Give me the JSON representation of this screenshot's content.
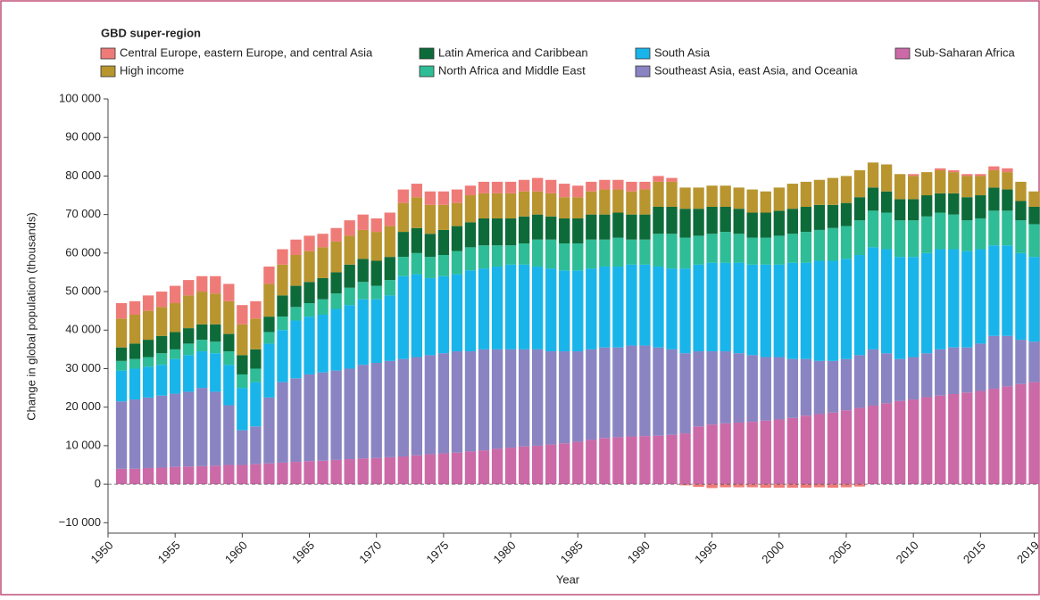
{
  "chart_data": {
    "type": "stacked_bar",
    "legend_title": "GBD super-region",
    "y_label": "Change in global population (thousands)",
    "x_label": "Year",
    "x": [
      1951,
      1952,
      1953,
      1954,
      1955,
      1956,
      1957,
      1958,
      1959,
      1960,
      1961,
      1962,
      1963,
      1964,
      1965,
      1966,
      1967,
      1968,
      1969,
      1970,
      1971,
      1972,
      1973,
      1974,
      1975,
      1976,
      1977,
      1978,
      1979,
      1980,
      1981,
      1982,
      1983,
      1984,
      1985,
      1986,
      1987,
      1988,
      1989,
      1990,
      1991,
      1992,
      1993,
      1994,
      1995,
      1996,
      1997,
      1998,
      1999,
      2000,
      2001,
      2002,
      2003,
      2004,
      2005,
      2006,
      2007,
      2008,
      2009,
      2010,
      2011,
      2012,
      2013,
      2014,
      2015,
      2016,
      2017,
      2018,
      2019
    ],
    "xlim": [
      1950,
      2019.3
    ],
    "xticks": [
      1950,
      1955,
      1960,
      1965,
      1970,
      1975,
      1980,
      1985,
      1990,
      1995,
      2000,
      2005,
      2010,
      2015,
      2019
    ],
    "ylim": [
      -12700,
      100000
    ],
    "yticks": [
      {
        "value": -10000,
        "label": "−10 000"
      },
      0,
      {
        "value": 10000,
        "label": "10 000"
      },
      {
        "value": 20000,
        "label": "20 000"
      },
      {
        "value": 30000,
        "label": "30 000"
      },
      {
        "value": 40000,
        "label": "40 000"
      },
      {
        "value": 50000,
        "label": "50 000"
      },
      {
        "value": 60000,
        "label": "60 000"
      },
      {
        "value": 70000,
        "label": "70 000"
      },
      {
        "value": 80000,
        "label": "80 000"
      },
      {
        "value": 90000,
        "label": "90 000"
      },
      {
        "value": 100000,
        "label": "100 000"
      }
    ],
    "series": [
      {
        "name": "Sub-Saharan Africa",
        "color": "#cc6aa8",
        "values": [
          4000,
          4000,
          4200,
          4300,
          4500,
          4600,
          4700,
          4800,
          5000,
          5000,
          5200,
          5400,
          5600,
          5800,
          6000,
          6100,
          6300,
          6500,
          6700,
          6800,
          7000,
          7200,
          7500,
          7800,
          8000,
          8200,
          8500,
          8800,
          9200,
          9500,
          9800,
          10000,
          10300,
          10600,
          11000,
          11500,
          12000,
          12200,
          12400,
          12500,
          12600,
          12800,
          13200,
          15000,
          15500,
          15800,
          16000,
          16200,
          16500,
          16800,
          17200,
          17800,
          18200,
          18600,
          19200,
          19800,
          20400,
          21000,
          21600,
          22000,
          22600,
          23000,
          23400,
          23800,
          24200,
          24800,
          25400,
          26000,
          26500
        ]
      },
      {
        "name": "Southeast Asia, east Asia, and Oceania",
        "color": "#8a84c2",
        "values": [
          17500,
          18000,
          18300,
          18700,
          19000,
          19400,
          20300,
          19200,
          15500,
          9000,
          9800,
          17100,
          20900,
          21700,
          22500,
          22900,
          23200,
          23500,
          24300,
          24700,
          25000,
          25300,
          25500,
          25700,
          26000,
          26300,
          26000,
          26200,
          25800,
          25500,
          25200,
          25000,
          24200,
          23900,
          23500,
          23500,
          23500,
          23300,
          23600,
          23500,
          22900,
          22200,
          20800,
          19500,
          19000,
          18700,
          18000,
          17300,
          16500,
          16200,
          15300,
          14700,
          13800,
          13400,
          13300,
          13700,
          14600,
          13000,
          10900,
          11000,
          11400,
          12000,
          12100,
          11700,
          12300,
          13700,
          13100,
          11500,
          10500
        ]
      },
      {
        "name": "South Asia",
        "color": "#19b5ea",
        "values": [
          8000,
          8000,
          8000,
          8000,
          9000,
          9500,
          9500,
          10000,
          10500,
          11000,
          11500,
          14000,
          13500,
          15000,
          15000,
          15000,
          16000,
          16500,
          17000,
          16500,
          17000,
          21500,
          21500,
          20000,
          20000,
          20000,
          21000,
          21000,
          21500,
          22000,
          22000,
          21500,
          21500,
          21000,
          21000,
          21000,
          21000,
          21000,
          21000,
          21000,
          21000,
          21000,
          22000,
          22500,
          23000,
          23000,
          23500,
          23500,
          24000,
          24000,
          25000,
          25000,
          26000,
          26000,
          26000,
          26000,
          26500,
          27000,
          26500,
          26000,
          26000,
          26000,
          25500,
          25000,
          24500,
          23500,
          23500,
          22500,
          22000
        ]
      },
      {
        "name": "North Africa and Middle East",
        "color": "#2ebd96",
        "values": [
          2500,
          2500,
          2500,
          3000,
          2500,
          3000,
          3000,
          3000,
          3500,
          3500,
          3500,
          3000,
          3500,
          3500,
          3500,
          4000,
          4000,
          4500,
          4500,
          3500,
          4000,
          5000,
          5500,
          5500,
          5500,
          6000,
          6000,
          6000,
          5500,
          5000,
          5500,
          7000,
          7500,
          7000,
          7000,
          7500,
          7000,
          7500,
          6500,
          6500,
          8500,
          9000,
          8000,
          7500,
          7500,
          8000,
          7500,
          7000,
          7000,
          7500,
          7500,
          8000,
          8000,
          8500,
          8500,
          9000,
          9500,
          9500,
          9500,
          9500,
          9500,
          9500,
          9000,
          8000,
          8000,
          9000,
          9000,
          8500,
          8500
        ]
      },
      {
        "name": "Latin America and Caribbean",
        "color": "#0d6b3a",
        "values": [
          3500,
          4000,
          4500,
          4500,
          4500,
          4000,
          4000,
          4500,
          4500,
          5000,
          5000,
          4000,
          5500,
          5500,
          5500,
          5500,
          5500,
          6000,
          6000,
          6500,
          6000,
          6500,
          6500,
          6000,
          6500,
          6500,
          6500,
          7000,
          7000,
          7000,
          7000,
          6500,
          6000,
          6500,
          6500,
          6500,
          6500,
          6500,
          6500,
          6500,
          7000,
          7000,
          7500,
          7000,
          7000,
          6500,
          6500,
          6500,
          6500,
          6500,
          6500,
          6500,
          6500,
          6000,
          6000,
          6000,
          6000,
          5500,
          5500,
          5500,
          5500,
          5000,
          5500,
          6000,
          6000,
          6000,
          5500,
          5000,
          4500
        ]
      },
      {
        "name": "High income",
        "color": "#b8952f",
        "values": [
          7500,
          7500,
          7500,
          7500,
          7500,
          8500,
          8500,
          8000,
          8500,
          8000,
          8000,
          8500,
          8000,
          8000,
          8000,
          8000,
          8000,
          7500,
          7500,
          7500,
          8000,
          7500,
          8000,
          7500,
          6500,
          6000,
          7000,
          6500,
          6500,
          6500,
          6500,
          6000,
          6000,
          5500,
          5500,
          6000,
          6500,
          6000,
          6000,
          6500,
          6500,
          6500,
          5500,
          5500,
          5500,
          5500,
          5500,
          6000,
          5500,
          6000,
          6500,
          6500,
          6500,
          7000,
          7000,
          7000,
          6500,
          7000,
          6500,
          6000,
          6000,
          6000,
          5500,
          5500,
          5000,
          4500,
          4500,
          5000,
          4000
        ]
      },
      {
        "name": "Central Europe, eastern Europe, and central Asia",
        "color": "#ef7b78",
        "values": [
          4000,
          3500,
          4000,
          4000,
          4500,
          4000,
          4000,
          4500,
          4500,
          5000,
          4500,
          4500,
          4000,
          4000,
          4000,
          3500,
          3500,
          4000,
          4000,
          3500,
          3500,
          3500,
          3500,
          3500,
          3500,
          3500,
          2500,
          3000,
          3000,
          3000,
          3000,
          3500,
          3500,
          3500,
          3000,
          2500,
          2500,
          2500,
          2500,
          2000,
          1500,
          1000,
          -300,
          -700,
          -1000,
          -800,
          -800,
          -800,
          -900,
          -900,
          -900,
          -900,
          -800,
          -900,
          -800,
          -600,
          0,
          0,
          0,
          500,
          0,
          500,
          500,
          500,
          500,
          1000,
          1000,
          0,
          0
        ]
      }
    ]
  }
}
